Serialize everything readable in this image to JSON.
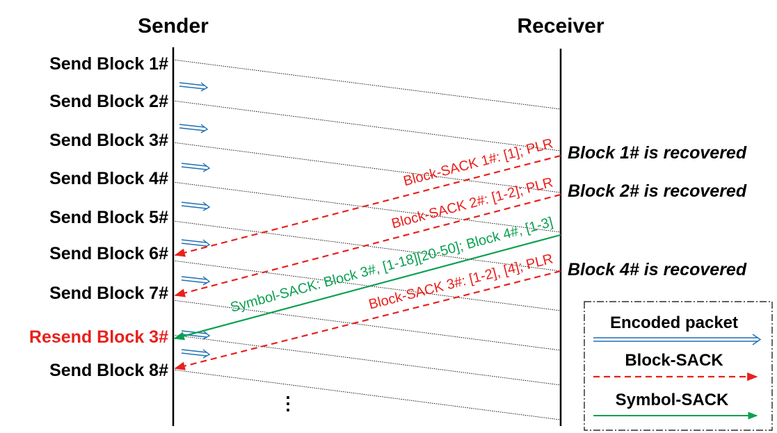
{
  "headers": {
    "sender": "Sender",
    "receiver": "Receiver"
  },
  "sender_labels": [
    "Send Block 1#",
    "Send Block 2#",
    "Send Block 3#",
    "Send Block 4#",
    "Send Block 5#",
    "Send Block 6#",
    "Send Block 7#",
    "Resend Block 3#",
    "Send Block 8#"
  ],
  "receiver_events": [
    "Block 1# is recovered",
    "Block 2# is recovered",
    "Block 4# is recovered"
  ],
  "messages": {
    "block_sack_1": "Block-SACK 1#: [1]; PLR",
    "block_sack_2": "Block-SACK 2#: [1-2]; PLR",
    "symbol_sack": "Symbol-SACK: Block 3#, [1-18][20-50]; Block 4#, [1-3]",
    "block_sack_3": "Block-SACK 3#: [1-2], [4]; PLR"
  },
  "ellipsis": "⋮",
  "legend": {
    "encoded_packet": "Encoded packet",
    "block_sack": "Block-SACK",
    "symbol_sack": "Symbol-SACK"
  },
  "colors": {
    "encoded_packet": "#1f6fb5",
    "block_sack": "#e8201c",
    "symbol_sack": "#0aa050",
    "resend_label": "#e8201c",
    "default_label": "#000000"
  }
}
